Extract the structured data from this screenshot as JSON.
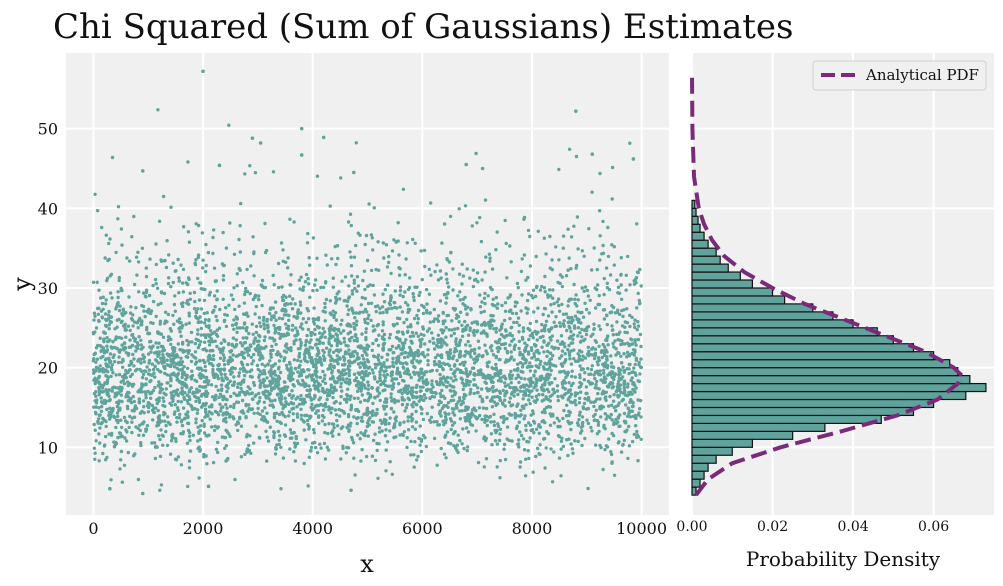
{
  "title": "Chi Squared (Sum of Gaussians) Estimates",
  "colors": {
    "scatter": "#5fa39c",
    "bar_fill": "#5fa39c",
    "bar_edge": "#111111",
    "pdf_line": "#7b2a7b",
    "panel_bg": "#f0f0f0",
    "grid": "#ffffff"
  },
  "chart_data": [
    {
      "type": "scatter",
      "xlabel": "x",
      "ylabel": "y",
      "xlim": [
        -500,
        10500
      ],
      "ylim": [
        1.5,
        59.5
      ],
      "xticks": [
        0,
        2000,
        4000,
        6000,
        8000,
        10000
      ],
      "yticks": [
        10,
        20,
        30,
        40,
        50
      ],
      "grid": true,
      "n_points": 10000,
      "y_distribution": "approx. chi-squared, center ~18, range ~4-57",
      "outliers": [
        {
          "x": 2000,
          "y": 57.2
        },
        {
          "x": 8800,
          "y": 52.2
        },
        {
          "x": 3800,
          "y": 50.0
        },
        {
          "x": 2900,
          "y": 48.8
        },
        {
          "x": 3050,
          "y": 48.2
        },
        {
          "x": 4200,
          "y": 48.9
        },
        {
          "x": 3800,
          "y": 46.7
        },
        {
          "x": 9100,
          "y": 46.8
        },
        {
          "x": 9850,
          "y": 46.2
        },
        {
          "x": 2300,
          "y": 45.4
        },
        {
          "x": 6800,
          "y": 45.5
        },
        {
          "x": 900,
          "y": 44.7
        },
        {
          "x": 4750,
          "y": 44.5
        },
        {
          "x": 7100,
          "y": 45.0
        },
        {
          "x": 900,
          "y": 4.2
        },
        {
          "x": 4700,
          "y": 4.6
        },
        {
          "x": 2100,
          "y": 5.1
        },
        {
          "x": 300,
          "y": 4.8
        }
      ]
    },
    {
      "type": "bar",
      "orientation": "horizontal",
      "xlabel": "Probability Density",
      "ylabel": "",
      "xlim": [
        0.0,
        0.075
      ],
      "ylim": [
        1.5,
        59.5
      ],
      "xticks": [
        "0.00",
        "0.02",
        "0.04",
        "0.06"
      ],
      "grid": true,
      "legend": {
        "position": "top-right",
        "entries": [
          "Analytical PDF"
        ]
      },
      "bins": [
        {
          "y0": 4.0,
          "y1": 5.0,
          "density": 0.001
        },
        {
          "y0": 5.0,
          "y1": 6.0,
          "density": 0.002
        },
        {
          "y0": 6.0,
          "y1": 7.0,
          "density": 0.003
        },
        {
          "y0": 7.0,
          "y1": 8.0,
          "density": 0.004
        },
        {
          "y0": 8.0,
          "y1": 9.0,
          "density": 0.006
        },
        {
          "y0": 9.0,
          "y1": 10.0,
          "density": 0.01
        },
        {
          "y0": 10.0,
          "y1": 11.0,
          "density": 0.015
        },
        {
          "y0": 11.0,
          "y1": 12.0,
          "density": 0.025
        },
        {
          "y0": 12.0,
          "y1": 13.0,
          "density": 0.033
        },
        {
          "y0": 13.0,
          "y1": 14.0,
          "density": 0.047
        },
        {
          "y0": 14.0,
          "y1": 15.0,
          "density": 0.055
        },
        {
          "y0": 15.0,
          "y1": 16.0,
          "density": 0.06
        },
        {
          "y0": 16.0,
          "y1": 17.0,
          "density": 0.068
        },
        {
          "y0": 17.0,
          "y1": 18.0,
          "density": 0.073
        },
        {
          "y0": 18.0,
          "y1": 19.0,
          "density": 0.069
        },
        {
          "y0": 19.0,
          "y1": 20.0,
          "density": 0.066
        },
        {
          "y0": 20.0,
          "y1": 21.0,
          "density": 0.064
        },
        {
          "y0": 21.0,
          "y1": 22.0,
          "density": 0.06
        },
        {
          "y0": 22.0,
          "y1": 23.0,
          "density": 0.055
        },
        {
          "y0": 23.0,
          "y1": 24.0,
          "density": 0.05
        },
        {
          "y0": 24.0,
          "y1": 25.0,
          "density": 0.046
        },
        {
          "y0": 25.0,
          "y1": 26.0,
          "density": 0.04
        },
        {
          "y0": 26.0,
          "y1": 27.0,
          "density": 0.035
        },
        {
          "y0": 27.0,
          "y1": 28.0,
          "density": 0.03
        },
        {
          "y0": 28.0,
          "y1": 29.0,
          "density": 0.023
        },
        {
          "y0": 29.0,
          "y1": 30.0,
          "density": 0.02
        },
        {
          "y0": 30.0,
          "y1": 31.0,
          "density": 0.015
        },
        {
          "y0": 31.0,
          "y1": 32.0,
          "density": 0.012
        },
        {
          "y0": 32.0,
          "y1": 33.0,
          "density": 0.009
        },
        {
          "y0": 33.0,
          "y1": 34.0,
          "density": 0.007
        },
        {
          "y0": 34.0,
          "y1": 35.0,
          "density": 0.006
        },
        {
          "y0": 35.0,
          "y1": 36.0,
          "density": 0.004
        },
        {
          "y0": 36.0,
          "y1": 37.0,
          "density": 0.003
        },
        {
          "y0": 37.0,
          "y1": 38.0,
          "density": 0.002
        },
        {
          "y0": 38.0,
          "y1": 39.0,
          "density": 0.0015
        },
        {
          "y0": 39.0,
          "y1": 40.0,
          "density": 0.001
        },
        {
          "y0": 40.0,
          "y1": 41.0,
          "density": 0.0007
        }
      ],
      "series": [
        {
          "name": "Analytical PDF",
          "style": "dashed",
          "points": [
            [
              4,
              0.001
            ],
            [
              6,
              0.004
            ],
            [
              8,
              0.01
            ],
            [
              10,
              0.022
            ],
            [
              12,
              0.037
            ],
            [
              14,
              0.051
            ],
            [
              16,
              0.061
            ],
            [
              18,
              0.066
            ],
            [
              19,
              0.067
            ],
            [
              20,
              0.065
            ],
            [
              22,
              0.058
            ],
            [
              24,
              0.048
            ],
            [
              26,
              0.038
            ],
            [
              28,
              0.028
            ],
            [
              30,
              0.02
            ],
            [
              32,
              0.013
            ],
            [
              34,
              0.008
            ],
            [
              36,
              0.005
            ],
            [
              38,
              0.003
            ],
            [
              40,
              0.0017
            ],
            [
              44,
              0.0005
            ],
            [
              50,
              0.0001
            ],
            [
              57,
              0.0
            ]
          ]
        }
      ]
    }
  ]
}
